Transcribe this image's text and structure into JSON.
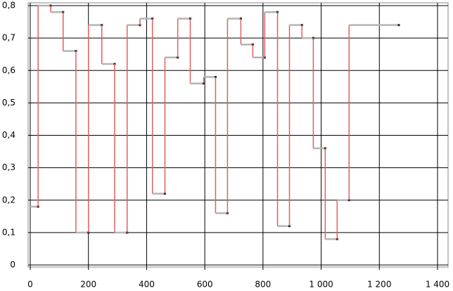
{
  "chart_data": {
    "type": "step",
    "x": [
      0,
      27,
      70,
      113,
      157,
      200,
      246,
      290,
      333,
      377,
      420,
      463,
      507,
      550,
      596,
      637,
      678,
      724,
      765,
      806,
      850,
      891,
      934,
      973,
      1014,
      1055,
      1096,
      1267
    ],
    "values": [
      0.18,
      0.8,
      0.78,
      0.66,
      0.1,
      0.74,
      0.62,
      0.1,
      0.74,
      0.76,
      0.22,
      0.64,
      0.76,
      0.56,
      0.58,
      0.16,
      0.76,
      0.68,
      0.64,
      0.78,
      0.12,
      0.74,
      0.7,
      0.36,
      0.08,
      0.2,
      0.74,
      0.74
    ],
    "color": "#b4b4b4",
    "riser_color": "#e06060",
    "xlim": [
      0,
      1400
    ],
    "xticks": [
      0,
      200,
      400,
      600,
      800,
      {
        "value": 1000,
        "label": "1 000"
      },
      {
        "value": 1200,
        "label": "1 200"
      },
      {
        "value": 1400,
        "label": "1 400"
      }
    ],
    "ylim": [
      0,
      0.8
    ],
    "yticks": [
      {
        "value": 0,
        "label": "0"
      },
      {
        "value": 0.1,
        "label": "0,1"
      },
      {
        "value": 0.2,
        "label": "0,2"
      },
      {
        "value": 0.3,
        "label": "0,3"
      },
      {
        "value": 0.4,
        "label": "0,4"
      },
      {
        "value": 0.5,
        "label": "0,5"
      },
      {
        "value": 0.6,
        "label": "0,6"
      },
      {
        "value": 0.7,
        "label": "0,7"
      },
      {
        "value": 0.8,
        "label": "0,8"
      }
    ],
    "grid": true
  }
}
